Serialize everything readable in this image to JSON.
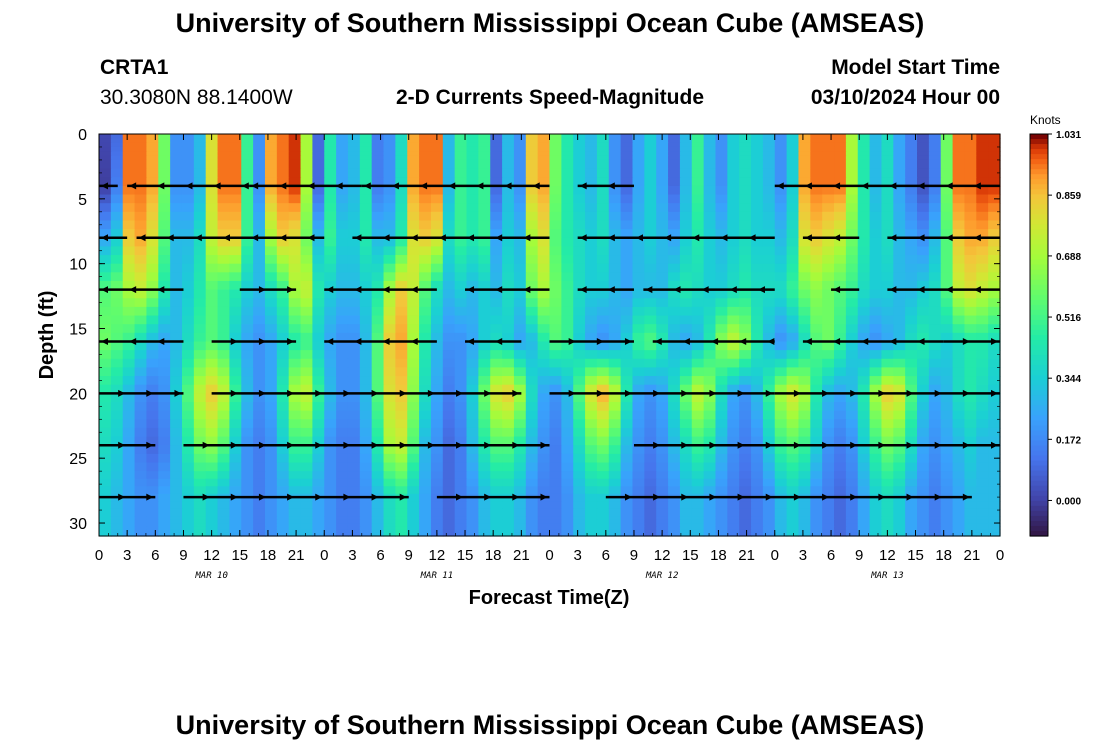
{
  "page": {
    "title_top": "University of Southern Mississippi Ocean Cube (AMSEAS)",
    "title_bottom": "University of Southern Mississippi Ocean Cube (AMSEAS)",
    "station_id": "CRTA1",
    "station_coords": "30.3080N  88.1400W",
    "model_start_label": "Model Start Time",
    "model_start_value": "03/10/2024 Hour 00"
  },
  "chart_data": {
    "type": "heatmap",
    "title": "2-D Currents Speed-Magnitude",
    "xlabel": "Forecast Time(Z)",
    "ylabel": "Depth (ft)",
    "x_range": [
      0,
      96
    ],
    "y_range": [
      0,
      31
    ],
    "x_ticks": [
      0,
      3,
      6,
      9,
      12,
      15,
      18,
      21,
      24,
      27,
      30,
      33,
      36,
      39,
      42,
      45,
      48,
      51,
      54,
      57,
      60,
      63,
      66,
      69,
      72,
      75,
      78,
      81,
      84,
      87,
      90,
      93,
      96
    ],
    "x_tick_labels": [
      "0",
      "3",
      "6",
      "9",
      "12",
      "15",
      "18",
      "21",
      "0",
      "3",
      "6",
      "9",
      "12",
      "15",
      "18",
      "21",
      "0",
      "3",
      "6",
      "9",
      "12",
      "15",
      "18",
      "21",
      "0",
      "3",
      "6",
      "9",
      "12",
      "15",
      "18",
      "21",
      "0"
    ],
    "y_ticks": [
      0,
      5,
      10,
      15,
      20,
      25,
      30
    ],
    "y_tick_labels": [
      "0",
      "5",
      "10",
      "15",
      "20",
      "25",
      "30"
    ],
    "day_labels": [
      {
        "x": 12,
        "label": "MAR 10"
      },
      {
        "x": 36,
        "label": "MAR 11"
      },
      {
        "x": 60,
        "label": "MAR 12"
      },
      {
        "x": 84,
        "label": "MAR 13"
      }
    ],
    "colorbar": {
      "unit": "Knots",
      "min": -0.1,
      "max": 1.031,
      "ticks": [
        1.031,
        0.859,
        0.688,
        0.516,
        0.344,
        0.172,
        0.0
      ],
      "tick_labels": [
        "1.031",
        "0.859",
        "0.688",
        "0.516",
        "0.344",
        "0.172",
        "0.000"
      ]
    },
    "arrow_depths": [
      4,
      8,
      12,
      16,
      20,
      24,
      28
    ],
    "speed_series": [
      {
        "depth": 0,
        "values": [
          0.02,
          0.1,
          0.95,
          0.95,
          0.9,
          0.6,
          0.2,
          0.2,
          0.3,
          0.8,
          0.95,
          0.95,
          0.5,
          0.2,
          0.9,
          0.95,
          1.0,
          0.7,
          0.1,
          0.45,
          0.25,
          0.3,
          0.45,
          0.15,
          0.2,
          0.4,
          0.9,
          0.95,
          0.95,
          0.3,
          0.5,
          0.45,
          0.5,
          0.1,
          0.3,
          0.2,
          0.85,
          0.9,
          0.6,
          0.45,
          0.35,
          0.3,
          0.4,
          0.2,
          0.1,
          0.25,
          0.35,
          0.25,
          0.1,
          0.3,
          0.5,
          0.3,
          0.2,
          0.35,
          0.4,
          0.35,
          0.3,
          0.2,
          0.35,
          0.9,
          0.95,
          0.95,
          0.95,
          0.7,
          0.45,
          0.3,
          0.4,
          0.25,
          0.15,
          0.05,
          0.15,
          0.6,
          0.95,
          0.95,
          1.0,
          1.0
        ]
      },
      {
        "depth": 4,
        "values": [
          0.0,
          0.15,
          0.95,
          0.95,
          0.9,
          0.6,
          0.2,
          0.2,
          0.3,
          0.8,
          0.95,
          0.95,
          0.5,
          0.2,
          0.9,
          0.95,
          1.0,
          0.7,
          0.1,
          0.45,
          0.25,
          0.3,
          0.45,
          0.15,
          0.2,
          0.4,
          0.9,
          0.95,
          0.95,
          0.3,
          0.5,
          0.45,
          0.5,
          0.1,
          0.3,
          0.2,
          0.85,
          0.9,
          0.6,
          0.45,
          0.35,
          0.3,
          0.4,
          0.2,
          0.1,
          0.25,
          0.35,
          0.25,
          0.1,
          0.3,
          0.5,
          0.3,
          0.2,
          0.35,
          0.4,
          0.35,
          0.3,
          0.2,
          0.35,
          0.9,
          0.95,
          0.95,
          0.95,
          0.7,
          0.45,
          0.3,
          0.4,
          0.25,
          0.15,
          0.05,
          0.15,
          0.6,
          0.95,
          0.95,
          1.0,
          1.0
        ]
      },
      {
        "depth": 8,
        "values": [
          0.25,
          0.35,
          0.85,
          0.9,
          0.8,
          0.55,
          0.3,
          0.3,
          0.4,
          0.75,
          0.85,
          0.85,
          0.5,
          0.3,
          0.7,
          0.85,
          0.8,
          0.6,
          0.3,
          0.5,
          0.35,
          0.35,
          0.45,
          0.3,
          0.3,
          0.45,
          0.8,
          0.85,
          0.8,
          0.4,
          0.5,
          0.45,
          0.5,
          0.25,
          0.35,
          0.3,
          0.7,
          0.8,
          0.55,
          0.45,
          0.4,
          0.35,
          0.4,
          0.3,
          0.25,
          0.3,
          0.35,
          0.3,
          0.25,
          0.35,
          0.45,
          0.35,
          0.3,
          0.35,
          0.4,
          0.35,
          0.35,
          0.3,
          0.4,
          0.8,
          0.85,
          0.8,
          0.75,
          0.6,
          0.45,
          0.35,
          0.4,
          0.3,
          0.25,
          0.2,
          0.3,
          0.55,
          0.85,
          0.9,
          0.9,
          0.85
        ]
      },
      {
        "depth": 12,
        "values": [
          0.55,
          0.6,
          0.7,
          0.75,
          0.65,
          0.45,
          0.3,
          0.35,
          0.45,
          0.55,
          0.5,
          0.45,
          0.35,
          0.3,
          0.4,
          0.5,
          0.7,
          0.75,
          0.45,
          0.35,
          0.3,
          0.3,
          0.35,
          0.45,
          0.7,
          0.85,
          0.75,
          0.55,
          0.4,
          0.3,
          0.35,
          0.3,
          0.35,
          0.3,
          0.4,
          0.35,
          0.6,
          0.7,
          0.6,
          0.5,
          0.4,
          0.35,
          0.35,
          0.3,
          0.25,
          0.3,
          0.3,
          0.3,
          0.4,
          0.45,
          0.4,
          0.35,
          0.35,
          0.4,
          0.45,
          0.4,
          0.4,
          0.4,
          0.5,
          0.6,
          0.65,
          0.6,
          0.55,
          0.5,
          0.4,
          0.35,
          0.35,
          0.3,
          0.3,
          0.35,
          0.4,
          0.55,
          0.75,
          0.8,
          0.75,
          0.7
        ]
      },
      {
        "depth": 16,
        "values": [
          0.6,
          0.55,
          0.5,
          0.4,
          0.3,
          0.25,
          0.3,
          0.4,
          0.5,
          0.55,
          0.5,
          0.35,
          0.25,
          0.2,
          0.25,
          0.35,
          0.45,
          0.5,
          0.35,
          0.25,
          0.2,
          0.2,
          0.3,
          0.55,
          0.85,
          0.9,
          0.7,
          0.45,
          0.3,
          0.2,
          0.2,
          0.25,
          0.35,
          0.4,
          0.35,
          0.25,
          0.3,
          0.45,
          0.55,
          0.5,
          0.35,
          0.25,
          0.2,
          0.25,
          0.35,
          0.5,
          0.55,
          0.45,
          0.3,
          0.25,
          0.3,
          0.45,
          0.65,
          0.75,
          0.65,
          0.45,
          0.3,
          0.2,
          0.25,
          0.4,
          0.55,
          0.6,
          0.5,
          0.35,
          0.25,
          0.2,
          0.25,
          0.3,
          0.4,
          0.45,
          0.4,
          0.35,
          0.4,
          0.45,
          0.45,
          0.4
        ]
      },
      {
        "depth": 20,
        "values": [
          0.45,
          0.4,
          0.3,
          0.2,
          0.15,
          0.2,
          0.35,
          0.55,
          0.75,
          0.85,
          0.75,
          0.5,
          0.3,
          0.2,
          0.25,
          0.45,
          0.7,
          0.75,
          0.5,
          0.3,
          0.2,
          0.2,
          0.3,
          0.55,
          0.8,
          0.85,
          0.65,
          0.4,
          0.25,
          0.15,
          0.2,
          0.35,
          0.6,
          0.8,
          0.85,
          0.7,
          0.4,
          0.25,
          0.2,
          0.3,
          0.55,
          0.8,
          0.9,
          0.75,
          0.45,
          0.25,
          0.2,
          0.25,
          0.4,
          0.6,
          0.75,
          0.65,
          0.4,
          0.25,
          0.2,
          0.3,
          0.5,
          0.7,
          0.8,
          0.7,
          0.45,
          0.3,
          0.25,
          0.3,
          0.45,
          0.7,
          0.85,
          0.8,
          0.55,
          0.35,
          0.25,
          0.3,
          0.4,
          0.45,
          0.4,
          0.35
        ]
      },
      {
        "depth": 24,
        "values": [
          0.4,
          0.35,
          0.25,
          0.15,
          0.1,
          0.15,
          0.3,
          0.45,
          0.6,
          0.65,
          0.55,
          0.35,
          0.2,
          0.15,
          0.2,
          0.35,
          0.5,
          0.5,
          0.35,
          0.2,
          0.15,
          0.15,
          0.25,
          0.45,
          0.7,
          0.75,
          0.55,
          0.3,
          0.2,
          0.1,
          0.15,
          0.3,
          0.45,
          0.55,
          0.55,
          0.45,
          0.3,
          0.2,
          0.15,
          0.25,
          0.4,
          0.55,
          0.6,
          0.5,
          0.3,
          0.2,
          0.15,
          0.2,
          0.3,
          0.4,
          0.5,
          0.45,
          0.3,
          0.2,
          0.15,
          0.2,
          0.35,
          0.5,
          0.55,
          0.5,
          0.35,
          0.2,
          0.15,
          0.2,
          0.35,
          0.5,
          0.6,
          0.55,
          0.4,
          0.25,
          0.2,
          0.25,
          0.3,
          0.35,
          0.3,
          0.3
        ]
      },
      {
        "depth": 28,
        "values": [
          0.35,
          0.3,
          0.25,
          0.2,
          0.2,
          0.25,
          0.3,
          0.35,
          0.4,
          0.35,
          0.3,
          0.25,
          0.2,
          0.15,
          0.2,
          0.25,
          0.3,
          0.3,
          0.25,
          0.2,
          0.15,
          0.15,
          0.2,
          0.3,
          0.4,
          0.45,
          0.35,
          0.25,
          0.15,
          0.1,
          0.15,
          0.2,
          0.3,
          0.35,
          0.35,
          0.3,
          0.2,
          0.15,
          0.15,
          0.2,
          0.3,
          0.35,
          0.35,
          0.3,
          0.2,
          0.15,
          0.1,
          0.15,
          0.2,
          0.3,
          0.3,
          0.25,
          0.2,
          0.15,
          0.1,
          0.15,
          0.2,
          0.3,
          0.35,
          0.3,
          0.2,
          0.15,
          0.1,
          0.15,
          0.25,
          0.35,
          0.4,
          0.35,
          0.25,
          0.2,
          0.15,
          0.2,
          0.25,
          0.3,
          0.3,
          0.3
        ]
      },
      {
        "depth": 31,
        "values": [
          0.35,
          0.3,
          0.25,
          0.2,
          0.2,
          0.25,
          0.3,
          0.35,
          0.4,
          0.35,
          0.3,
          0.25,
          0.2,
          0.15,
          0.2,
          0.25,
          0.3,
          0.3,
          0.25,
          0.2,
          0.15,
          0.15,
          0.2,
          0.3,
          0.4,
          0.45,
          0.35,
          0.25,
          0.15,
          0.1,
          0.15,
          0.2,
          0.3,
          0.35,
          0.35,
          0.3,
          0.2,
          0.15,
          0.15,
          0.2,
          0.3,
          0.35,
          0.35,
          0.3,
          0.2,
          0.15,
          0.1,
          0.15,
          0.2,
          0.3,
          0.3,
          0.25,
          0.2,
          0.15,
          0.1,
          0.15,
          0.2,
          0.3,
          0.35,
          0.3,
          0.2,
          0.15,
          0.1,
          0.15,
          0.25,
          0.35,
          0.4,
          0.35,
          0.25,
          0.2,
          0.15,
          0.2,
          0.25,
          0.3,
          0.3,
          0.3
        ]
      }
    ],
    "arrow_segments": [
      {
        "depth": 4,
        "segments": [
          [
            0,
            2,
            "left"
          ],
          [
            3,
            16,
            "left"
          ],
          [
            16,
            28,
            "left"
          ],
          [
            28,
            48,
            "left"
          ],
          [
            51,
            57,
            "left"
          ],
          [
            72,
            96,
            "left"
          ]
        ]
      },
      {
        "depth": 8,
        "segments": [
          [
            0,
            3,
            "left"
          ],
          [
            4,
            24,
            "left"
          ],
          [
            27,
            48,
            "left"
          ],
          [
            51,
            72,
            "left"
          ],
          [
            75,
            81,
            "left"
          ],
          [
            84,
            96,
            "left"
          ]
        ]
      },
      {
        "depth": 12,
        "segments": [
          [
            0,
            9,
            "left"
          ],
          [
            15,
            21,
            "right"
          ],
          [
            24,
            36,
            "left"
          ],
          [
            39,
            48,
            "left"
          ],
          [
            51,
            57,
            "left"
          ],
          [
            58,
            72,
            "left"
          ],
          [
            78,
            81,
            "left"
          ],
          [
            84,
            96,
            "left"
          ]
        ]
      },
      {
        "depth": 16,
        "segments": [
          [
            0,
            9,
            "left"
          ],
          [
            12,
            21,
            "right"
          ],
          [
            24,
            36,
            "left"
          ],
          [
            39,
            45,
            "left"
          ],
          [
            48,
            57,
            "right"
          ],
          [
            59,
            72,
            "left"
          ],
          [
            75,
            90,
            "left"
          ],
          [
            90,
            96,
            "right"
          ]
        ]
      },
      {
        "depth": 20,
        "segments": [
          [
            0,
            9,
            "right"
          ],
          [
            12,
            45,
            "right"
          ],
          [
            48,
            72,
            "right"
          ],
          [
            72,
            96,
            "right"
          ]
        ]
      },
      {
        "depth": 24,
        "segments": [
          [
            0,
            6,
            "right"
          ],
          [
            9,
            48,
            "right"
          ],
          [
            57,
            96,
            "right"
          ]
        ]
      },
      {
        "depth": 28,
        "segments": [
          [
            0,
            6,
            "right"
          ],
          [
            9,
            33,
            "right"
          ],
          [
            36,
            48,
            "right"
          ],
          [
            54,
            93,
            "right"
          ]
        ]
      }
    ]
  }
}
